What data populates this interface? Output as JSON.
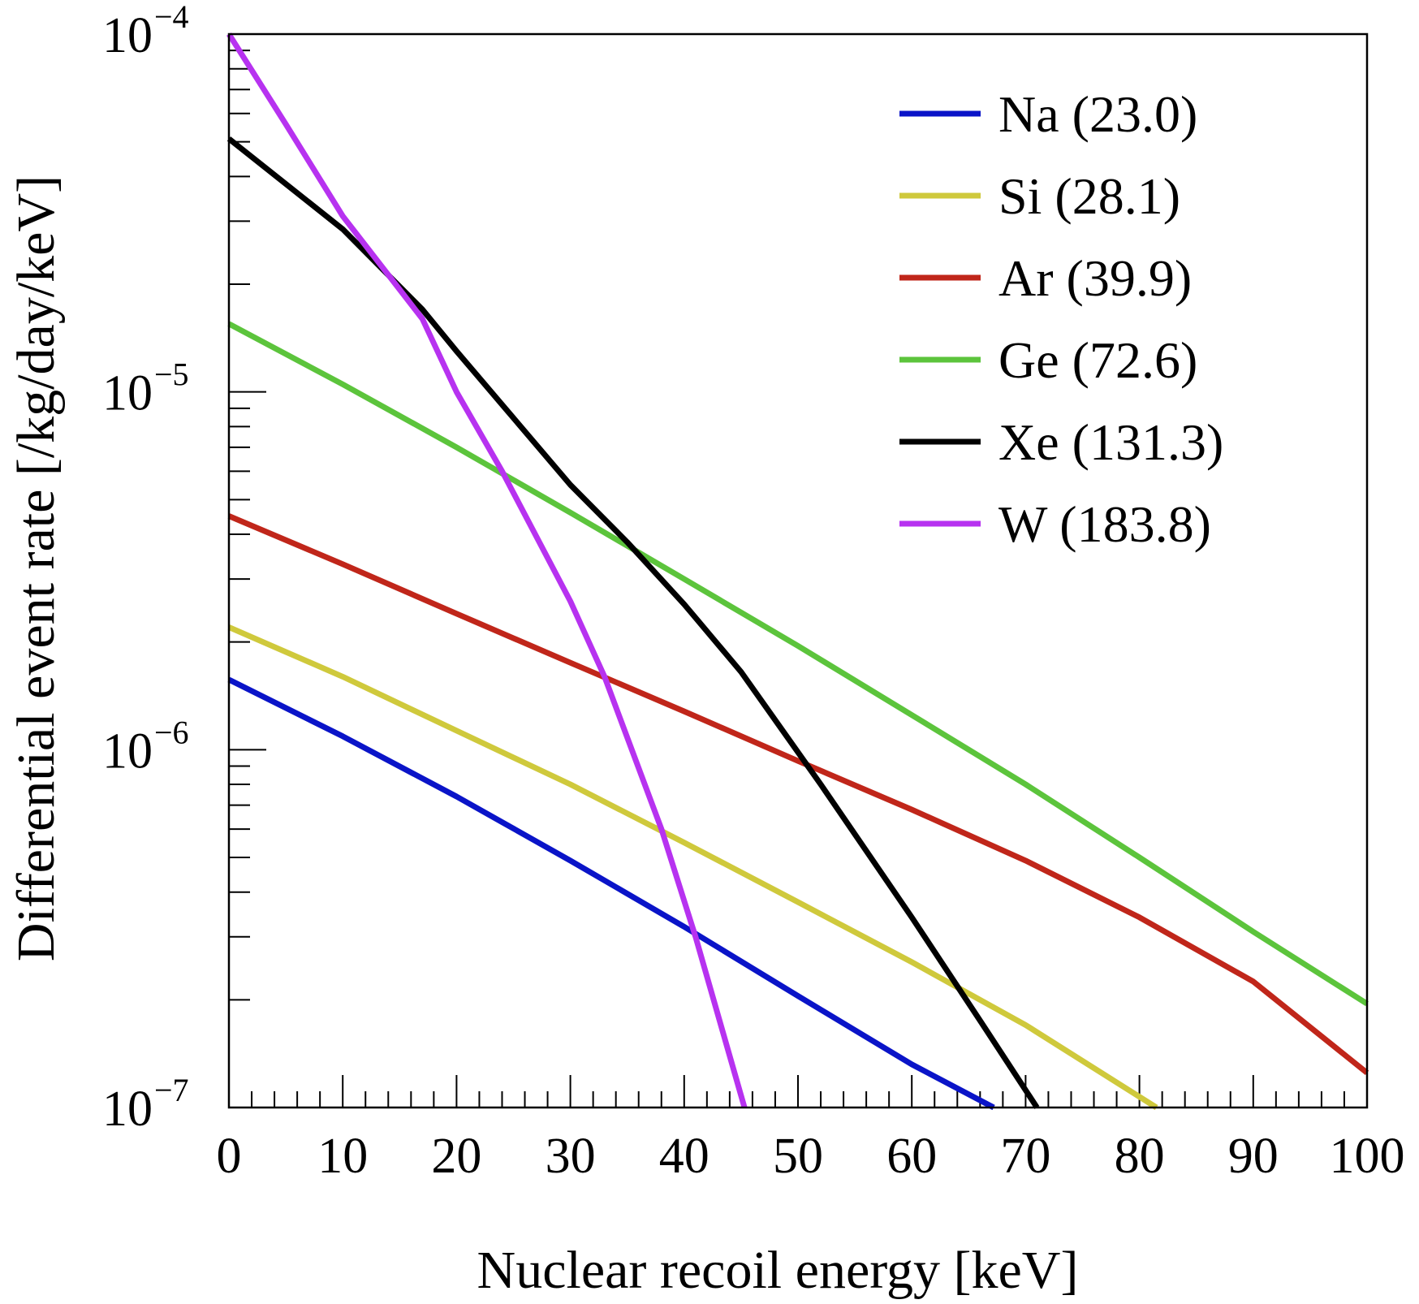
{
  "chart_data": {
    "type": "line",
    "title": "",
    "xlabel": "Nuclear recoil energy [keV]",
    "ylabel": "Differential event rate [/kg/day/keV]",
    "xlim": [
      0,
      100
    ],
    "ylim": [
      1e-07,
      0.0001
    ],
    "yscale": "log",
    "grid": false,
    "legend_position": "top-right",
    "x_ticks": [
      "0",
      "10",
      "20",
      "30",
      "40",
      "50",
      "60",
      "70",
      "80",
      "90",
      "100"
    ],
    "y_ticks": [
      {
        "base": "10",
        "exp": "−7",
        "value": 1e-07
      },
      {
        "base": "10",
        "exp": "−6",
        "value": 1e-06
      },
      {
        "base": "10",
        "exp": "−5",
        "value": 1e-05
      },
      {
        "base": "10",
        "exp": "−4",
        "value": 0.0001
      }
    ],
    "series": [
      {
        "name": "Na (23.0)",
        "color": "#0a14c8",
        "x": [
          0,
          10,
          20,
          30,
          40,
          50,
          60,
          67.2
        ],
        "y": [
          1.57e-06,
          1.09e-06,
          7.4e-07,
          4.9e-07,
          3.2e-07,
          2.05e-07,
          1.32e-07,
          1e-07
        ]
      },
      {
        "name": "Si (28.1)",
        "color": "#cfc93c",
        "x": [
          0,
          10,
          20,
          30,
          40,
          50,
          60,
          70,
          81.5
        ],
        "y": [
          2.2e-06,
          1.6e-06,
          1.13e-06,
          8e-07,
          5.5e-07,
          3.75e-07,
          2.55e-07,
          1.7e-07,
          1e-07
        ]
      },
      {
        "name": "Ar (39.9)",
        "color": "#c0261a",
        "x": [
          0,
          10,
          20,
          30,
          40,
          50,
          60,
          70,
          80,
          90,
          100
        ],
        "y": [
          4.5e-06,
          3.3e-06,
          2.4e-06,
          1.75e-06,
          1.28e-06,
          9.3e-07,
          6.8e-07,
          4.9e-07,
          3.4e-07,
          2.25e-07,
          1.25e-07
        ]
      },
      {
        "name": "Ge (72.6)",
        "color": "#5cc43c",
        "x": [
          0,
          10,
          20,
          30,
          40,
          50,
          60,
          70,
          80,
          90,
          100
        ],
        "y": [
          1.55e-05,
          1.05e-05,
          7e-06,
          4.6e-06,
          3e-06,
          1.95e-06,
          1.25e-06,
          8e-07,
          5e-07,
          3.1e-07,
          1.95e-07
        ]
      },
      {
        "name": "Xe (131.3)",
        "color": "#000000",
        "x": [
          0,
          10,
          17,
          20,
          30,
          35,
          40,
          45,
          52,
          60,
          66,
          71
        ],
        "y": [
          5.1e-05,
          2.85e-05,
          1.7e-05,
          1.3e-05,
          5.5e-06,
          3.8e-06,
          2.55e-06,
          1.65e-06,
          8e-07,
          3.4e-07,
          1.75e-07,
          1e-07
        ]
      },
      {
        "name": "W (183.8)",
        "color": "#b732f0",
        "x": [
          0,
          5,
          10,
          17,
          20,
          24,
          30,
          33,
          38,
          41,
          45.3
        ],
        "y": [
          0.0001,
          5.6e-05,
          3.1e-05,
          1.6e-05,
          1e-05,
          6e-06,
          2.6e-06,
          1.6e-06,
          6e-07,
          3e-07,
          1e-07
        ]
      }
    ]
  }
}
